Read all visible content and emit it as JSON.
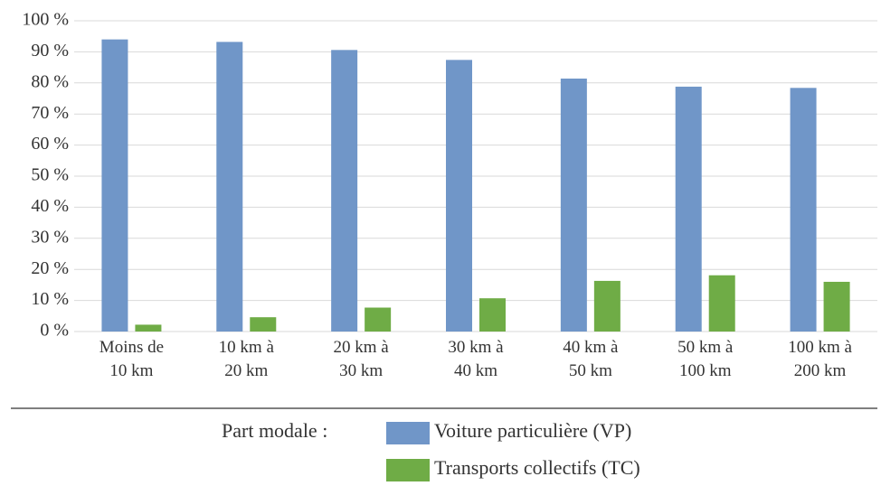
{
  "chart_data": {
    "type": "bar",
    "categories": [
      "Moins de 10 km",
      "10 km à 20 km",
      "20 km à 30 km",
      "30 km à 40 km",
      "40 km à 50 km",
      "50 km à 100 km",
      "100 km à 200 km"
    ],
    "series": [
      {
        "name": "Voiture particulière (VP)",
        "color": "#7096c8",
        "values": [
          94,
          93.2,
          90.6,
          87.4,
          81.4,
          78.8,
          78.4
        ]
      },
      {
        "name": "Transports collectifs (TC)",
        "color": "#6fac46",
        "values": [
          2.2,
          4.6,
          7.7,
          10.7,
          16.3,
          18.1,
          16.0
        ]
      }
    ],
    "legend_title": "Part modale :",
    "ylim": [
      0,
      100
    ],
    "yticks": [
      {
        "value": 0,
        "label": "0 %"
      },
      {
        "value": 10,
        "label": "10 %"
      },
      {
        "value": 20,
        "label": "20 %"
      },
      {
        "value": 30,
        "label": "30 %"
      },
      {
        "value": 40,
        "label": "40 %"
      },
      {
        "value": 50,
        "label": "50 %"
      },
      {
        "value": 60,
        "label": "60 %"
      },
      {
        "value": 70,
        "label": "70 %"
      },
      {
        "value": 80,
        "label": "80 %"
      },
      {
        "value": 90,
        "label": "90 %"
      },
      {
        "value": 100,
        "label": "100 %"
      }
    ],
    "grid": true,
    "legend": "bottom"
  }
}
